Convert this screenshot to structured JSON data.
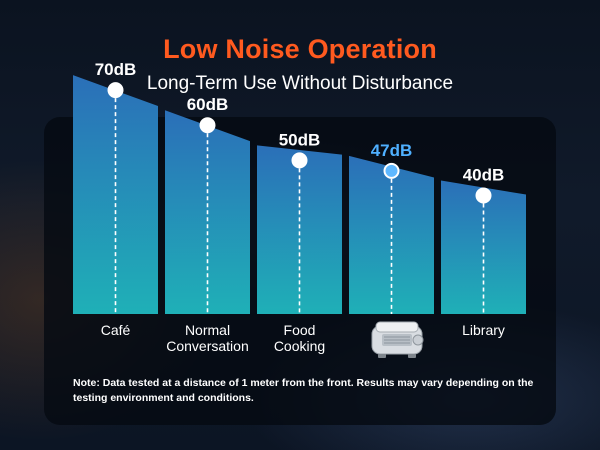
{
  "header": {
    "title": "Low Noise Operation",
    "subtitle": "Long-Term Use Without Disturbance"
  },
  "chart_data": {
    "type": "bar",
    "unit": "dB",
    "categories": [
      "Café",
      "Normal\nConversation",
      "Food\nCooking",
      "",
      "Library"
    ],
    "values": [
      70,
      60,
      50,
      47,
      40
    ],
    "value_labels": [
      "70dB",
      "60dB",
      "50dB",
      "47dB",
      "40dB"
    ],
    "highlight_index": 3,
    "highlight_icon": "appliance-icon",
    "ylim": [
      0,
      78
    ],
    "grid": false,
    "legend": "none"
  },
  "colors": {
    "title": "#ff5a1f",
    "bar_top": "#2b6fb8",
    "bar_bottom": "#1fb0b7",
    "highlight_label": "#4fb0ff",
    "marker_fill": "#ffffff",
    "highlight_marker": "#5fb8ff"
  },
  "footnote": "Note: Data tested at a distance of 1 meter from the front. Results may vary depending on the testing environment and conditions."
}
